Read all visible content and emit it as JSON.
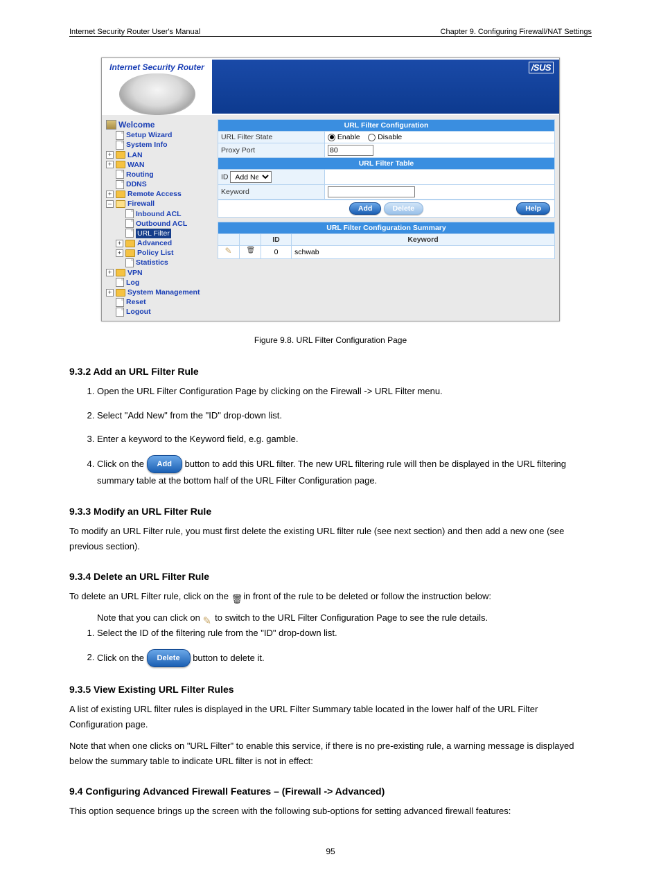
{
  "header_text": "Internet Security Router User's Manual",
  "chapter_right": "Chapter 9. Configuring Firewall/NAT Settings",
  "screenshot": {
    "title": "Internet Security Router",
    "logo": "/SUS",
    "sidebar": {
      "root": "Welcome",
      "items": [
        {
          "label": "Setup Wizard",
          "pad": 1,
          "icon": "page"
        },
        {
          "label": "System Info",
          "pad": 1,
          "icon": "page"
        },
        {
          "label": "LAN",
          "pad": 0,
          "icon": "folder-closed",
          "expand": "+"
        },
        {
          "label": "WAN",
          "pad": 0,
          "icon": "folder-closed",
          "expand": "+"
        },
        {
          "label": "Routing",
          "pad": 1,
          "icon": "page"
        },
        {
          "label": "DDNS",
          "pad": 1,
          "icon": "page"
        },
        {
          "label": "Remote Access",
          "pad": 0,
          "icon": "folder-closed",
          "expand": "+"
        },
        {
          "label": "Firewall",
          "pad": 0,
          "icon": "folder-open",
          "expand": "-"
        },
        {
          "label": "Inbound ACL",
          "pad": 2,
          "icon": "page"
        },
        {
          "label": "Outbound ACL",
          "pad": 2,
          "icon": "page"
        },
        {
          "label": "URL Filter",
          "pad": 2,
          "icon": "page",
          "highlight": true
        },
        {
          "label": "Advanced",
          "pad": 1,
          "icon": "folder-closed",
          "expand": "+"
        },
        {
          "label": "Policy List",
          "pad": 1,
          "icon": "folder-closed",
          "expand": "+"
        },
        {
          "label": "Statistics",
          "pad": 2,
          "icon": "page"
        },
        {
          "label": "VPN",
          "pad": 0,
          "icon": "folder-closed",
          "expand": "+"
        },
        {
          "label": "Log",
          "pad": 1,
          "icon": "page"
        },
        {
          "label": "System Management",
          "pad": 0,
          "icon": "folder-closed",
          "expand": "+"
        },
        {
          "label": "Reset",
          "pad": 1,
          "icon": "page"
        },
        {
          "label": "Logout",
          "pad": 1,
          "icon": "page"
        }
      ]
    },
    "config": {
      "head1": "URL Filter Configuration",
      "row_state_label": "URL Filter State",
      "enable": "Enable",
      "disable": "Disable",
      "row_proxy_label": "Proxy Port",
      "proxy_value": "80",
      "head2": "URL Filter Table",
      "id_label": "ID",
      "id_select": "Add New",
      "keyword_label": "Keyword",
      "keyword_value": "",
      "btn_add": "Add",
      "btn_delete": "Delete",
      "btn_help": "Help",
      "head3": "URL Filter Configuration Summary",
      "col_id": "ID",
      "col_keyword": "Keyword",
      "row_id": "0",
      "row_keyword": "schwab"
    }
  },
  "caption": "Figure 9.8. URL Filter Configuration Page",
  "section_932": "9.3.2 Add an URL Filter Rule",
  "steps_932": {
    "s1": "Open the URL Filter Configuration Page by clicking on the Firewall -> URL Filter menu.",
    "s2": "Select \"Add New\" from the \"ID\" drop-down list.",
    "s3": "Enter a keyword to the Keyword field, e.g. gamble.",
    "s4a": "Click on the ",
    "s4b": " button to add this URL filter. The new URL filtering rule will then be displayed in the URL filtering summary table at the bottom half of the URL Filter Configuration page."
  },
  "section_933": "9.3.3 Modify an URL Filter Rule",
  "text_933": "To modify an URL Filter rule, you must first delete the existing URL filter rule (see next section) and then add a new one (see previous section).",
  "section_934": "9.3.4 Delete an URL Filter Rule",
  "text_934_intro": "To delete an URL Filter rule, click on the ",
  "text_934_outro": " in front of the rule to be deleted or follow the instruction below:",
  "steps_934": {
    "s1a": "Note that you can click on ",
    "s1b": " to switch to the URL Filter Configuration Page to see the rule details.",
    "s2": "Select the ID of the filtering rule from the \"ID\" drop-down list.",
    "s3a": "Click on the ",
    "s3b": " button to delete it."
  },
  "section_935": "9.3.5 View Existing URL Filter Rules",
  "text_935_a": "A list of existing URL filter rules is displayed in the URL Filter Summary table located in the lower half of the URL Filter Configuration page.",
  "text_935_b": "Note that when one clicks on \"URL Filter\" to enable this service, if there is no pre-existing rule, a warning message is displayed below the summary table to indicate URL filter is not in effect:",
  "section_94": "9.4 Configuring Advanced Firewall Features – (Firewall -> Advanced)",
  "text_94": "This option sequence brings up the screen with the following sub-options for setting advanced firewall features:",
  "page_number": "95"
}
